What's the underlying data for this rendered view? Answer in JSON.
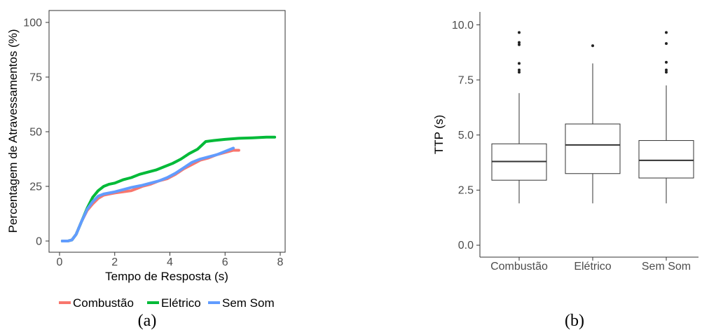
{
  "chart_data": [
    {
      "type": "line",
      "caption": "(a)",
      "xlabel": "Tempo de Resposta (s)",
      "ylabel": "Percentagem de Atravessamentos (%)",
      "xlim": [
        0,
        8
      ],
      "ylim": [
        0,
        100
      ],
      "xticks": [
        "0",
        "2",
        "4",
        "6",
        "8"
      ],
      "yticks": [
        "0",
        "25",
        "50",
        "75",
        "100"
      ],
      "grid": false,
      "legend_position": "bottom",
      "series": [
        {
          "name": "Combustão",
          "color": "#F8766D",
          "x": [
            0.1,
            0.3,
            0.45,
            0.6,
            0.8,
            1.0,
            1.2,
            1.4,
            1.6,
            1.8,
            2.0,
            2.3,
            2.6,
            2.8,
            3.0,
            3.3,
            3.6,
            3.9,
            4.2,
            4.5,
            4.8,
            5.1,
            5.4,
            5.7,
            6.0,
            6.3,
            6.5
          ],
          "y": [
            0,
            0,
            0.5,
            3,
            9,
            14,
            17,
            19.5,
            21,
            21.5,
            22,
            22.5,
            23,
            24,
            25,
            26,
            27.5,
            28.5,
            30.5,
            33,
            35,
            37,
            38,
            39.5,
            40.5,
            41.5,
            41.5
          ]
        },
        {
          "name": "Elétrico",
          "color": "#00BA38",
          "x": [
            0.1,
            0.3,
            0.45,
            0.6,
            0.8,
            1.0,
            1.2,
            1.4,
            1.6,
            1.8,
            2.0,
            2.3,
            2.6,
            2.9,
            3.2,
            3.5,
            3.8,
            4.1,
            4.4,
            4.7,
            5.0,
            5.3,
            5.6,
            6.0,
            6.5,
            7.0,
            7.5,
            7.8
          ],
          "y": [
            0,
            0,
            0.5,
            3,
            9,
            15,
            20,
            23,
            25,
            26,
            26.5,
            28,
            29,
            30.5,
            31.5,
            32.5,
            34,
            35.5,
            37.5,
            40,
            42,
            45.5,
            46,
            46.5,
            47,
            47.2,
            47.5,
            47.5
          ]
        },
        {
          "name": "Sem Som",
          "color": "#619CFF",
          "x": [
            0.1,
            0.3,
            0.45,
            0.6,
            0.8,
            1.0,
            1.2,
            1.4,
            1.6,
            1.8,
            2.0,
            2.3,
            2.6,
            2.8,
            3.0,
            3.3,
            3.6,
            3.9,
            4.2,
            4.5,
            4.8,
            5.1,
            5.4,
            5.7,
            6.0,
            6.3
          ],
          "y": [
            0,
            0,
            0.5,
            3,
            9,
            14.5,
            18,
            20.5,
            21.5,
            22,
            22.5,
            23.5,
            24.5,
            25,
            25.5,
            26.5,
            27.5,
            29,
            31,
            33.5,
            36,
            37.5,
            38.5,
            39.5,
            41,
            42.5
          ]
        }
      ]
    },
    {
      "type": "box",
      "caption": "(b)",
      "xlabel": "",
      "ylabel": "TTP (s)",
      "ylim": [
        0,
        10
      ],
      "yticks": [
        "0.0",
        "2.5",
        "5.0",
        "7.5",
        "10.0"
      ],
      "grid": false,
      "categories": [
        "Combustão",
        "Elétrico",
        "Sem Som"
      ],
      "boxes": [
        {
          "min": 1.9,
          "q1": 2.95,
          "median": 3.8,
          "q3": 4.6,
          "max": 6.9,
          "outliers": [
            7.85,
            7.95,
            8.25,
            9.1,
            9.2,
            9.65
          ]
        },
        {
          "min": 1.9,
          "q1": 3.25,
          "median": 4.55,
          "q3": 5.5,
          "max": 8.25,
          "outliers": [
            9.05
          ]
        },
        {
          "min": 1.9,
          "q1": 3.05,
          "median": 3.85,
          "q3": 4.75,
          "max": 7.25,
          "outliers": [
            7.85,
            7.95,
            8.3,
            9.15,
            9.65
          ]
        }
      ]
    }
  ]
}
